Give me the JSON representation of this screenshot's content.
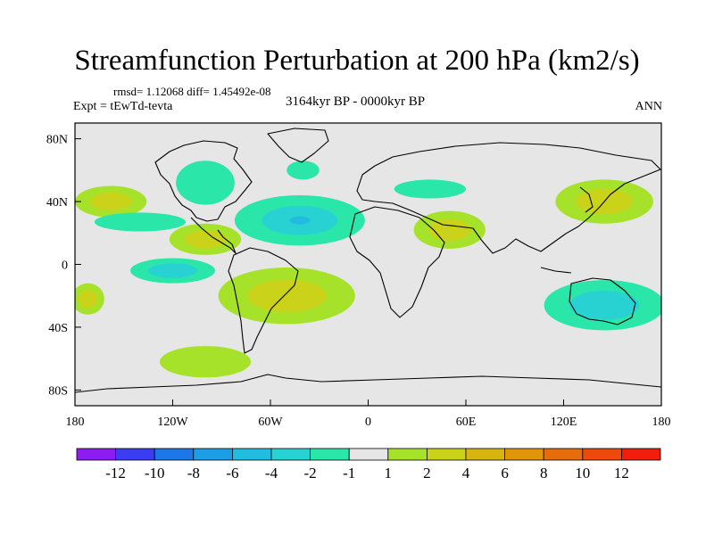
{
  "chart_data": {
    "type": "heatmap",
    "title": "Streamfunction Perturbation at 200 hPa (km2/s)",
    "stats_text": "rmsd= 1.12068 diff= 1.45492e-08",
    "experiment": "Expt = tEwTd-tevta",
    "period": "3164kyr BP - 0000kyr BP",
    "season": "ANN",
    "xlim": [
      -180,
      180
    ],
    "ylim": [
      -90,
      90
    ],
    "x_ticks": [
      {
        "value": -180,
        "label": "180"
      },
      {
        "value": -120,
        "label": "120W"
      },
      {
        "value": -60,
        "label": "60W"
      },
      {
        "value": 0,
        "label": "0"
      },
      {
        "value": 60,
        "label": "60E"
      },
      {
        "value": 120,
        "label": "120E"
      },
      {
        "value": 180,
        "label": "180"
      }
    ],
    "y_ticks": [
      {
        "value": 80,
        "label": "80N"
      },
      {
        "value": 40,
        "label": "40N"
      },
      {
        "value": 0,
        "label": "0"
      },
      {
        "value": -40,
        "label": "40S"
      },
      {
        "value": -80,
        "label": "80S"
      }
    ],
    "colorbar": {
      "colors": [
        "#8c1cf0",
        "#3c3cf0",
        "#1c78e6",
        "#1c9ee6",
        "#22bce0",
        "#28d2d2",
        "#2ae6a8",
        "#e6e6e6",
        "#a6e22a",
        "#cad21a",
        "#d8b40e",
        "#e0960a",
        "#e66e0a",
        "#ec4a0a",
        "#f01e0a"
      ],
      "labels": [
        "-12",
        "-10",
        "-8",
        "-6",
        "-4",
        "-2",
        "-1",
        "1",
        "2",
        "4",
        "6",
        "8",
        "10",
        "12"
      ]
    },
    "anomalies": [
      {
        "lon": -158,
        "lat": 40,
        "rx": 22,
        "ry": 10,
        "levels": [
          2,
          4
        ]
      },
      {
        "lon": -140,
        "lat": 27,
        "rx": 28,
        "ry": 6,
        "levels": [
          -1
        ]
      },
      {
        "lon": -100,
        "lat": 16,
        "rx": 22,
        "ry": 10,
        "levels": [
          2,
          4
        ]
      },
      {
        "lon": -120,
        "lat": -4,
        "rx": 26,
        "ry": 8,
        "levels": [
          -1,
          -2
        ]
      },
      {
        "lon": -42,
        "lat": 28,
        "rx": 40,
        "ry": 16,
        "levels": [
          -1,
          -2,
          -4
        ]
      },
      {
        "lon": -100,
        "lat": 52,
        "rx": 18,
        "ry": 14,
        "levels": [
          -1
        ]
      },
      {
        "lon": -40,
        "lat": 60,
        "rx": 10,
        "ry": 6,
        "levels": [
          -1
        ]
      },
      {
        "lon": -50,
        "lat": -20,
        "rx": 42,
        "ry": 18,
        "levels": [
          2,
          4
        ]
      },
      {
        "lon": -100,
        "lat": -62,
        "rx": 28,
        "ry": 10,
        "levels": [
          2
        ]
      },
      {
        "lon": -172,
        "lat": -22,
        "rx": 10,
        "ry": 10,
        "levels": [
          2,
          4
        ]
      },
      {
        "lon": 38,
        "lat": 48,
        "rx": 22,
        "ry": 6,
        "levels": [
          -1
        ]
      },
      {
        "lon": 50,
        "lat": 22,
        "rx": 22,
        "ry": 12,
        "levels": [
          2,
          4
        ]
      },
      {
        "lon": 145,
        "lat": 40,
        "rx": 30,
        "ry": 14,
        "levels": [
          2,
          4
        ]
      },
      {
        "lon": 145,
        "lat": -26,
        "rx": 37,
        "ry": 16,
        "levels": [
          -1,
          -2
        ]
      }
    ]
  }
}
